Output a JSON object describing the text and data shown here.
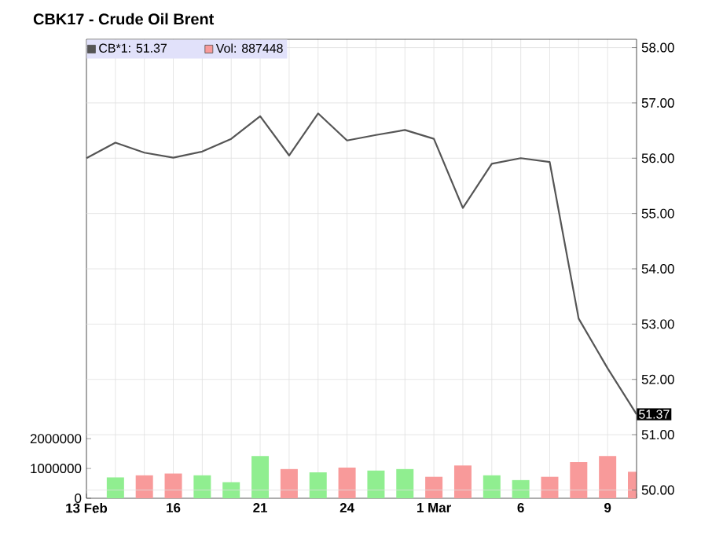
{
  "chart_data": {
    "type": "line",
    "title": "CBK17 - Crude Oil Brent",
    "categories": [
      "13 Feb",
      null,
      null,
      "16",
      null,
      null,
      "21",
      null,
      null,
      "24",
      null,
      null,
      "1 Mar",
      null,
      null,
      "6",
      null,
      null,
      "9",
      null
    ],
    "series": [
      {
        "name": "CB*1: 51.37",
        "color": "#555555",
        "values": [
          56.0,
          56.28,
          56.1,
          56.01,
          56.12,
          56.35,
          56.76,
          56.05,
          56.81,
          56.32,
          56.42,
          56.51,
          56.35,
          55.1,
          55.9,
          56.0,
          55.93,
          53.1,
          52.2,
          51.37
        ]
      },
      {
        "name": "Vol: 887448",
        "color": "#f89a9a",
        "type": "bar",
        "axis": "y2",
        "values": [
          null,
          700000,
          770000,
          830000,
          770000,
          540000,
          1420000,
          980000,
          870000,
          1030000,
          930000,
          980000,
          720000,
          1100000,
          770000,
          610000,
          720000,
          1210000,
          1420000,
          890000
        ],
        "colors": [
          null,
          "#90ee90",
          "#f89a9a",
          "#f89a9a",
          "#90ee90",
          "#90ee90",
          "#90ee90",
          "#f89a9a",
          "#90ee90",
          "#f89a9a",
          "#90ee90",
          "#90ee90",
          "#f89a9a",
          "#f89a9a",
          "#90ee90",
          "#90ee90",
          "#f89a9a",
          "#f89a9a",
          "#f89a9a",
          "#f89a9a"
        ]
      }
    ],
    "ylim": [
      49.85,
      58.15
    ],
    "yticks": [
      {
        "value": 50,
        "label": "50.00"
      },
      {
        "value": 51,
        "label": "51.00"
      },
      {
        "value": 52,
        "label": "52.00"
      },
      {
        "value": 53,
        "label": "53.00"
      },
      {
        "value": 54,
        "label": "54.00"
      },
      {
        "value": 55,
        "label": "55.00"
      },
      {
        "value": 56,
        "label": "56.00"
      },
      {
        "value": 57,
        "label": "57.00"
      },
      {
        "value": 58,
        "label": "58.00"
      }
    ],
    "y2lim": [
      0,
      15400000
    ],
    "y2ticks": [
      0,
      1000000,
      2000000
    ],
    "annotations": [
      {
        "text": "51.37",
        "y": 51.37
      }
    ],
    "grid": true,
    "legend": "top left"
  }
}
